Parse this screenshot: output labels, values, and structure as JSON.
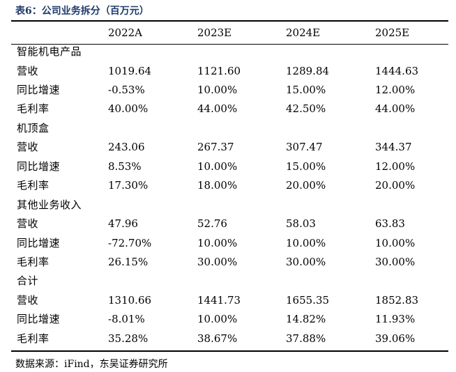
{
  "title": "表6：公司业务拆分（百万元）",
  "columns": [
    "",
    "2022A",
    "2023E",
    "2024E",
    "2025E"
  ],
  "rows": [
    [
      "智能机电产品",
      "",
      "",
      "",
      ""
    ],
    [
      "营收",
      "1019.64",
      "1121.60",
      "1289.84",
      "1444.63"
    ],
    [
      "同比增速",
      "-0.53%",
      "10.00%",
      "15.00%",
      "12.00%"
    ],
    [
      "毛利率",
      "40.00%",
      "44.00%",
      "42.50%",
      "44.00%"
    ],
    [
      "机顶盒",
      "",
      "",
      "",
      ""
    ],
    [
      "营收",
      "243.06",
      "267.37",
      "307.47",
      "344.37"
    ],
    [
      "同比增速",
      "8.53%",
      "10.00%",
      "15.00%",
      "12.00%"
    ],
    [
      "毛利率",
      "17.30%",
      "18.00%",
      "20.00%",
      "20.00%"
    ],
    [
      "其他业务收入",
      "",
      "",
      "",
      ""
    ],
    [
      "营收",
      "47.96",
      "52.76",
      "58.03",
      "63.83"
    ],
    [
      "同比增速",
      "-72.70%",
      "10.00%",
      "10.00%",
      "10.00%"
    ],
    [
      "毛利率",
      "26.15%",
      "30.00%",
      "30.00%",
      "30.00%"
    ],
    [
      "合计",
      "",
      "",
      "",
      ""
    ],
    [
      "营收",
      "1310.66",
      "1441.73",
      "1655.35",
      "1852.83"
    ],
    [
      "同比增速",
      "-8.01%",
      "10.00%",
      "14.82%",
      "11.93%"
    ],
    [
      "毛利率",
      "35.28%",
      "38.67%",
      "37.88%",
      "39.06%"
    ]
  ],
  "source": "数据来源：iFind，东吴证券研究所",
  "colors": {
    "title": "#1f3a6b",
    "text": "#000000",
    "rule": "#000000"
  }
}
